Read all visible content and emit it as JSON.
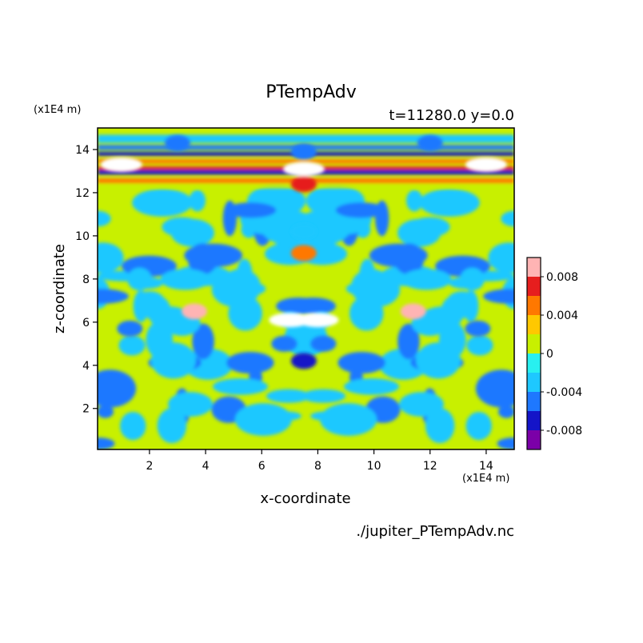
{
  "chart_data": {
    "type": "heatmap",
    "title": "PTempAdv",
    "subtitle": "t=11280.0 y=0.0",
    "xlabel": "x-coordinate",
    "ylabel": "z-coordinate",
    "x_unit": "(x1E4 m)",
    "y_unit": "(x1E4 m)",
    "source": "./jupiter_PTempAdv.nc",
    "xlim": [
      0.15,
      15.0
    ],
    "ylim": [
      0.1,
      15.0
    ],
    "x_ticks": [
      2,
      4,
      6,
      8,
      10,
      12,
      14
    ],
    "y_ticks": [
      2,
      4,
      6,
      8,
      10,
      12,
      14
    ],
    "colorbar": {
      "levels": [
        -0.01,
        -0.008,
        -0.006,
        -0.004,
        -0.002,
        0,
        0.002,
        0.004,
        0.006,
        0.008,
        0.01
      ],
      "colors": [
        "#7b00a8",
        "#1414c8",
        "#1e78ff",
        "#1ec8ff",
        "#28f0f0",
        "#c8f000",
        "#ffc800",
        "#ff7800",
        "#e61e1e",
        "#ffb4b4"
      ],
      "tick_values": [
        -0.008,
        -0.004,
        0,
        0.004,
        0.008
      ],
      "tick_labels": [
        "-0.008",
        "-0.004",
        "0",
        "0.004",
        "0.008"
      ]
    },
    "field_features": [
      {
        "x": 7.5,
        "z": 13.1,
        "value": 0.012
      },
      {
        "x": 1.0,
        "z": 13.3,
        "value": 0.011
      },
      {
        "x": 14.0,
        "z": 13.3,
        "value": 0.011
      },
      {
        "x": 7.5,
        "z": 13.9,
        "value": -0.006
      },
      {
        "x": 3.0,
        "z": 14.3,
        "value": -0.005
      },
      {
        "x": 12.0,
        "z": 14.3,
        "value": -0.005
      },
      {
        "x": 7.5,
        "z": 12.4,
        "value": 0.006
      },
      {
        "x": 7.0,
        "z": 6.1,
        "value": 0.011
      },
      {
        "x": 8.0,
        "z": 6.1,
        "value": 0.011
      },
      {
        "x": 3.6,
        "z": 6.5,
        "value": 0.009
      },
      {
        "x": 11.4,
        "z": 6.5,
        "value": 0.009
      },
      {
        "x": 7.5,
        "z": 4.2,
        "value": -0.007
      },
      {
        "x": 6.8,
        "z": 5.0,
        "value": -0.005
      },
      {
        "x": 8.2,
        "z": 5.0,
        "value": -0.005
      },
      {
        "x": 1.3,
        "z": 5.7,
        "value": -0.006
      },
      {
        "x": 13.7,
        "z": 5.7,
        "value": -0.006
      },
      {
        "x": 7.5,
        "z": 9.2,
        "value": 0.005
      },
      {
        "x": 7.5,
        "z": 10.2,
        "value": -0.004
      }
    ]
  }
}
